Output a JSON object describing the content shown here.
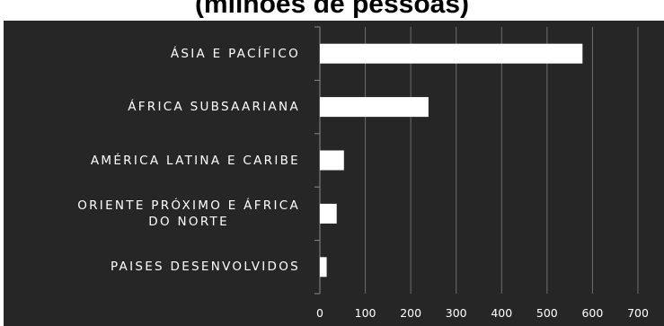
{
  "title": "(milhões de pessoas)",
  "chart_data": {
    "type": "bar",
    "orientation": "horizontal",
    "title": "(milhões de pessoas)",
    "categories": [
      "ÁSIA E PACÍFICO",
      "ÁFRICA SUBSAARIANA",
      "AMÉRICA LATINA E CARIBE",
      "ORIENTE PRÓXIMO E ÁFRICA DO NORTE",
      "PAISES DESENVOLVIDOS"
    ],
    "category_lines": [
      [
        "ÁSIA E PACÍFICO"
      ],
      [
        "ÁFRICA SUBSAARIANA"
      ],
      [
        "AMÉRICA LATINA E CARIBE"
      ],
      [
        "ORIENTE PRÓXIMO E ÁFRICA",
        "DO NORTE"
      ],
      [
        "PAISES DESENVOLVIDOS"
      ]
    ],
    "values": [
      578,
      239,
      53,
      37,
      15
    ],
    "xlim": [
      0,
      700
    ],
    "xticks": [
      "0",
      "100",
      "200",
      "300",
      "400",
      "500",
      "600",
      "700"
    ],
    "grid": true,
    "colors": {
      "background": "#262626",
      "bar": "#ffffff",
      "gridline": "#6e6e6e",
      "text": "#ffffff"
    }
  }
}
